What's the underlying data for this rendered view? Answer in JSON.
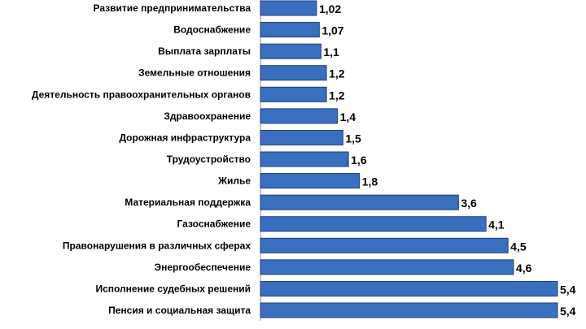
{
  "chart_data": {
    "type": "bar",
    "orientation": "horizontal",
    "title": "",
    "xlabel": "",
    "ylabel": "",
    "categories": [
      "Развитие предпринимательства",
      "Водоснабжение",
      "Выплата зарплаты",
      "Земельные отношения",
      "Деятельность правоохранительных органов",
      "Здравоохранение",
      "Дорожная инфраструктура",
      "Трудоустройство",
      "Жилье",
      "Материальная поддержка",
      "Газоснабжение",
      "Правонарушения в различных сферах",
      "Энергообеспечение",
      "Исполнение судебных решений",
      "Пенсия и социальная защита"
    ],
    "values": [
      1.02,
      1.07,
      1.1,
      1.2,
      1.2,
      1.4,
      1.5,
      1.6,
      1.8,
      3.6,
      4.1,
      4.5,
      4.6,
      5.4,
      5.4
    ],
    "value_labels": [
      "1,02",
      "1,07",
      "1,1",
      "1,2",
      "1,2",
      "1,4",
      "1,5",
      "1,6",
      "1,8",
      "3,6",
      "4,1",
      "4,5",
      "4,6",
      "5,4",
      "5,4"
    ],
    "xlim": [
      0,
      5.4
    ],
    "grid": false,
    "legend": "none",
    "bar_color": "#3A6EBF",
    "bar_border_color": "#1F3F7A",
    "axis_color": "#8C8C8C"
  }
}
